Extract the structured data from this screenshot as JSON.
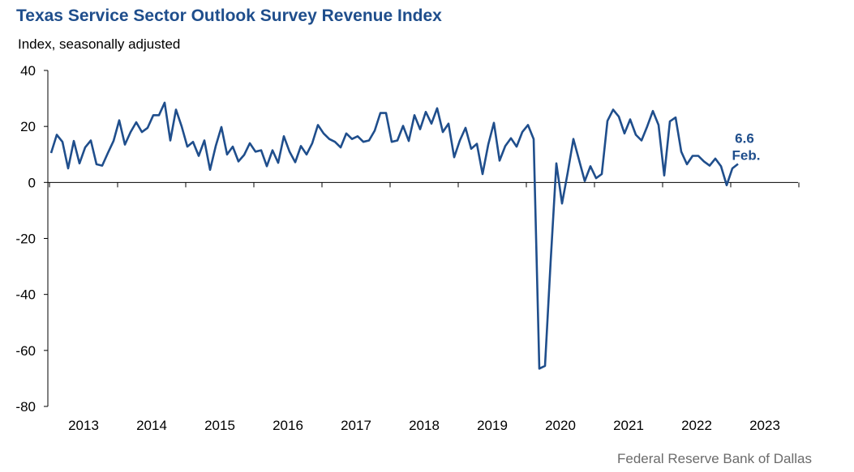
{
  "chart_data": {
    "type": "line",
    "title": "Texas Service Sector Outlook Survey Revenue Index",
    "ylabel": "Index, seasonally adjusted",
    "source": "Federal Reserve Bank of Dallas",
    "ylim": [
      -80,
      40
    ],
    "yticks": [
      "40",
      "20",
      "0",
      "-20",
      "-40",
      "-60",
      "-80"
    ],
    "ytick_values": [
      40,
      20,
      0,
      -20,
      -40,
      -60,
      -80
    ],
    "xtick_labels": [
      "2013",
      "2014",
      "2015",
      "2016",
      "2017",
      "2018",
      "2019",
      "2020",
      "2021",
      "2022",
      "2023"
    ],
    "start": "2013-01",
    "series": [
      {
        "name": "Revenue Index",
        "color": "#1f4e8c",
        "values": [
          10.5,
          17.0,
          14.5,
          5.0,
          14.8,
          6.8,
          12.5,
          15.0,
          6.5,
          6.0,
          10.5,
          14.8,
          22.2,
          13.5,
          18.0,
          21.5,
          18.0,
          19.5,
          24.0,
          24.0,
          28.5,
          15.0,
          26.0,
          20.0,
          12.8,
          14.5,
          9.5,
          15.0,
          4.5,
          13.0,
          19.8,
          10.0,
          12.8,
          7.5,
          9.8,
          14.0,
          11.0,
          11.5,
          5.8,
          11.5,
          7.0,
          16.5,
          11.0,
          7.2,
          13.0,
          10.0,
          14.0,
          20.5,
          17.5,
          15.5,
          14.5,
          12.5,
          17.5,
          15.5,
          16.5,
          14.5,
          15.0,
          18.5,
          24.8,
          24.8,
          14.5,
          15.0,
          20.2,
          14.8,
          24.0,
          19.0,
          25.2,
          21.0,
          26.5,
          18.0,
          21.0,
          9.0,
          15.0,
          19.5,
          12.0,
          13.8,
          3.0,
          13.5,
          21.3,
          7.8,
          13.0,
          15.8,
          12.8,
          18.0,
          20.5,
          15.5,
          -66.5,
          -65.5,
          -28.0,
          6.8,
          -7.5,
          3.5,
          15.5,
          8.0,
          0.5,
          5.8,
          1.5,
          3.0,
          22.0,
          26.0,
          23.5,
          17.5,
          22.5,
          17.0,
          15.0,
          20.0,
          25.5,
          20.5,
          2.5,
          21.8,
          23.2,
          11.0,
          6.5,
          9.5,
          9.5,
          7.5,
          6.0,
          8.5,
          5.8,
          -1.0,
          5.0,
          6.6
        ]
      }
    ],
    "annotation": {
      "value_label": "6.6",
      "date_label": "Feb."
    }
  }
}
